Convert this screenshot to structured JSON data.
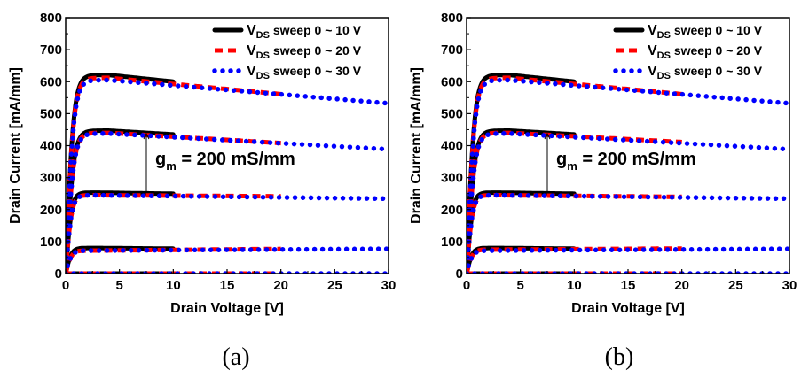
{
  "chart_data": [
    {
      "type": "line",
      "panel": "a",
      "caption": "(a)",
      "xlabel": "Drain Voltage [V]",
      "ylabel": "Drain Current [mA/mm]",
      "xlim": [
        0,
        30
      ],
      "ylim": [
        0,
        800
      ],
      "xticks": [
        "0",
        "5",
        "10",
        "15",
        "20",
        "25",
        "30"
      ],
      "yticks": [
        "0",
        "100",
        "200",
        "300",
        "400",
        "500",
        "600",
        "700",
        "800"
      ],
      "legend_position": "top-right",
      "annotation": {
        "text": "g",
        "subscript": "m",
        "suffix": " = 200 mS/mm"
      },
      "series": [
        {
          "name": "V",
          "name_sub": "DS",
          "name_suffix": " sweep 0 ~ 10 V",
          "color": "#000000",
          "style": "solid",
          "xmax": 10,
          "curves": [
            {
              "isat": 0,
              "peak_v": 0,
              "slope": 0
            },
            {
              "isat": 80,
              "peak_v": 3,
              "slope": -0.3
            },
            {
              "isat": 253,
              "peak_v": 3,
              "slope": -0.5
            },
            {
              "isat": 447,
              "peak_v": 4,
              "slope": -2.0
            },
            {
              "isat": 621,
              "peak_v": 4,
              "slope": -3.5
            }
          ]
        },
        {
          "name": "V",
          "name_sub": "DS",
          "name_suffix": " sweep 0 ~ 20 V",
          "color": "#ff0000",
          "style": "dashed",
          "xmax": 20,
          "curves": [
            {
              "isat": 0,
              "peak_v": 0,
              "slope": 0
            },
            {
              "isat": 72,
              "peak_v": 3,
              "slope": 0.3
            },
            {
              "isat": 245,
              "peak_v": 3,
              "slope": -0.2
            },
            {
              "isat": 440,
              "peak_v": 4,
              "slope": -2.0
            },
            {
              "isat": 612,
              "peak_v": 4,
              "slope": -3.2
            }
          ]
        },
        {
          "name": "V",
          "name_sub": "DS",
          "name_suffix": " sweep 0 ~ 30 V",
          "color": "#0000ff",
          "style": "dotted",
          "xmax": 30,
          "curves": [
            {
              "isat": 0,
              "peak_v": 0,
              "slope": 0
            },
            {
              "isat": 72,
              "peak_v": 3,
              "slope": 0.2
            },
            {
              "isat": 245,
              "peak_v": 3,
              "slope": -0.4
            },
            {
              "isat": 438,
              "peak_v": 4,
              "slope": -1.9
            },
            {
              "isat": 605,
              "peak_v": 4,
              "slope": -2.8
            }
          ]
        }
      ]
    },
    {
      "type": "line",
      "panel": "b",
      "caption": "(b)",
      "xlabel": "Drain Voltage [V]",
      "ylabel": "Drain Current [mA/mm]",
      "xlim": [
        0,
        30
      ],
      "ylim": [
        0,
        800
      ],
      "xticks": [
        "0",
        "5",
        "10",
        "15",
        "20",
        "25",
        "30"
      ],
      "yticks": [
        "0",
        "100",
        "200",
        "300",
        "400",
        "500",
        "600",
        "700",
        "800"
      ],
      "legend_position": "top-right",
      "annotation": {
        "text": "g",
        "subscript": "m",
        "suffix": " = 200 mS/mm"
      },
      "series": [
        {
          "name": "V",
          "name_sub": "DS",
          "name_suffix": " sweep 0 ~ 10 V",
          "color": "#000000",
          "style": "solid",
          "xmax": 10,
          "curves": [
            {
              "isat": 0,
              "peak_v": 0,
              "slope": 0
            },
            {
              "isat": 80,
              "peak_v": 3,
              "slope": -0.3
            },
            {
              "isat": 253,
              "peak_v": 3,
              "slope": -0.5
            },
            {
              "isat": 447,
              "peak_v": 4,
              "slope": -2.0
            },
            {
              "isat": 621,
              "peak_v": 4,
              "slope": -3.5
            }
          ]
        },
        {
          "name": "V",
          "name_sub": "DS",
          "name_suffix": " sweep 0 ~ 20 V",
          "color": "#ff0000",
          "style": "dashed",
          "xmax": 20,
          "curves": [
            {
              "isat": 0,
              "peak_v": 0,
              "slope": 0
            },
            {
              "isat": 75,
              "peak_v": 3,
              "slope": 0.2
            },
            {
              "isat": 245,
              "peak_v": 3,
              "slope": -0.3
            },
            {
              "isat": 440,
              "peak_v": 4,
              "slope": -1.8
            },
            {
              "isat": 612,
              "peak_v": 4,
              "slope": -3.2
            }
          ]
        },
        {
          "name": "V",
          "name_sub": "DS",
          "name_suffix": " sweep 0 ~ 30 V",
          "color": "#0000ff",
          "style": "dotted",
          "xmax": 30,
          "curves": [
            {
              "isat": 0,
              "peak_v": 0,
              "slope": 0
            },
            {
              "isat": 72,
              "peak_v": 3,
              "slope": 0.2
            },
            {
              "isat": 245,
              "peak_v": 3,
              "slope": -0.4
            },
            {
              "isat": 438,
              "peak_v": 4,
              "slope": -1.9
            },
            {
              "isat": 605,
              "peak_v": 4,
              "slope": -2.8
            }
          ]
        }
      ]
    }
  ]
}
